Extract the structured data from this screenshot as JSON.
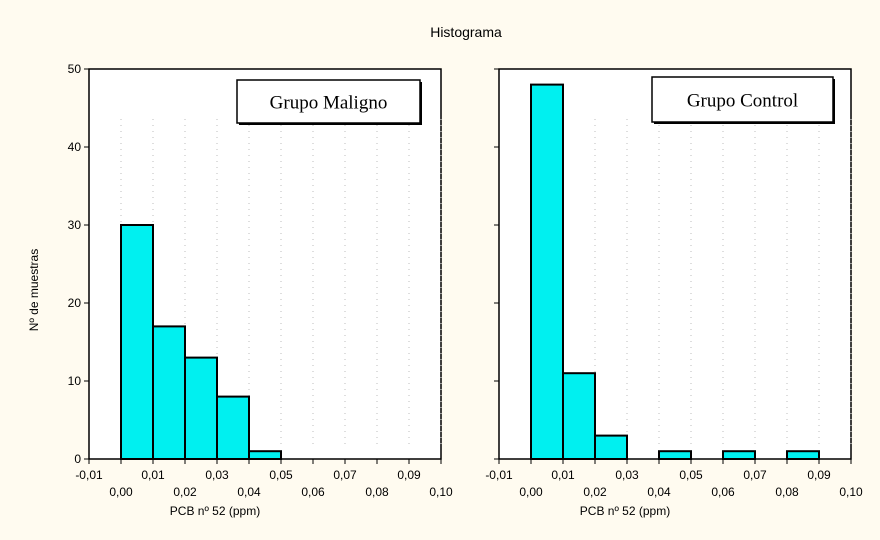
{
  "title": "Histograma",
  "ylabel": "Nº de muestras",
  "colors": {
    "bar": "#00f0f0",
    "background": "#fffbf0",
    "plot": "#ffffff"
  },
  "chart_data": [
    {
      "type": "bar",
      "legend": "Grupo Maligno",
      "xlabel": "PCB nº 52 (ppm)",
      "ylabel": "Nº de muestras",
      "ylim": [
        0,
        50
      ],
      "xlim": [
        -0.01,
        0.1
      ],
      "yticks": [
        "0",
        "10",
        "20",
        "30",
        "40",
        "50"
      ],
      "xticks_upper": [
        "-0,01",
        "0,01",
        "0,03",
        "0,05",
        "0,07",
        "0,09"
      ],
      "xticks_lower": [
        "0,00",
        "0,02",
        "0,04",
        "0,06",
        "0,08",
        "0,10"
      ],
      "bins": [
        {
          "from": 0.0,
          "to": 0.01,
          "count": 30
        },
        {
          "from": 0.01,
          "to": 0.02,
          "count": 17
        },
        {
          "from": 0.02,
          "to": 0.03,
          "count": 13
        },
        {
          "from": 0.03,
          "to": 0.04,
          "count": 8
        },
        {
          "from": 0.04,
          "to": 0.05,
          "count": 1
        }
      ]
    },
    {
      "type": "bar",
      "legend": "Grupo Control",
      "xlabel": "PCB nº 52 (ppm)",
      "ylabel": "Nº de muestras",
      "ylim": [
        0,
        50
      ],
      "xlim": [
        -0.01,
        0.1
      ],
      "yticks": [
        "0",
        "10",
        "20",
        "30",
        "40",
        "50"
      ],
      "xticks_upper": [
        "-0,01",
        "0,01",
        "0,03",
        "0,05",
        "0,07",
        "0,09"
      ],
      "xticks_lower": [
        "0,00",
        "0,02",
        "0,04",
        "0,06",
        "0,08",
        "0,10"
      ],
      "bins": [
        {
          "from": 0.0,
          "to": 0.01,
          "count": 48
        },
        {
          "from": 0.01,
          "to": 0.02,
          "count": 11
        },
        {
          "from": 0.02,
          "to": 0.03,
          "count": 3
        },
        {
          "from": 0.04,
          "to": 0.05,
          "count": 1
        },
        {
          "from": 0.06,
          "to": 0.07,
          "count": 1
        },
        {
          "from": 0.08,
          "to": 0.09,
          "count": 1
        }
      ]
    }
  ]
}
